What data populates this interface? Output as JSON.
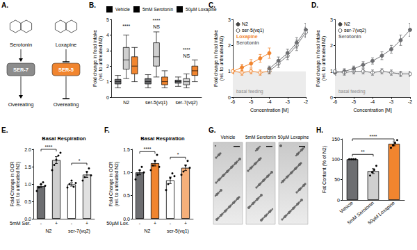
{
  "diagram": {
    "panel": "A.",
    "nodes": [
      {
        "label": "Serotonin",
        "kind": "molecule"
      },
      {
        "label": "Loxapine",
        "kind": "molecule"
      },
      {
        "label": "SER-7",
        "kind": "receptor",
        "color": "#8c8c8c"
      },
      {
        "label": "SER-5",
        "kind": "receptor",
        "color": "#f1852f"
      },
      {
        "label": "Overeating",
        "kind": "phenotype"
      },
      {
        "label": "Overeating",
        "kind": "phenotype"
      }
    ],
    "edges": [
      {
        "from": 0,
        "to": 2,
        "type": "activates"
      },
      {
        "from": 2,
        "to": 4,
        "type": "activates"
      },
      {
        "from": 1,
        "to": 3,
        "type": "inhibits"
      },
      {
        "from": 3,
        "to": 5,
        "type": "inhibits"
      }
    ]
  },
  "images": {
    "panel": "G.",
    "labels": [
      "Vehicle",
      "5mM Serotonin",
      "50µM Loxapine"
    ]
  },
  "chart_data": [
    {
      "panel": "B.",
      "type": "boxplot",
      "y_label": [
        "Fold change in food intake",
        "(rel. to untreated N2)"
      ],
      "categories": [
        "N2",
        "ser-5(vq1)",
        "ser-7(vq2)"
      ],
      "series": [
        {
          "name": "Vehicle",
          "color": "#6d6e71",
          "values": [
            [
              0.6,
              0.85,
              1.0,
              1.15,
              1.4
            ],
            [
              0.6,
              0.85,
              1.0,
              1.2,
              1.45
            ],
            [
              0.7,
              0.9,
              1.0,
              1.1,
              1.3
            ]
          ]
        },
        {
          "name": "5mM Serotonin",
          "color": "#cfcfcf",
          "values": [
            [
              1.2,
              1.8,
              2.4,
              3.2,
              4.0
            ],
            [
              1.3,
              2.0,
              2.6,
              3.5,
              4.2
            ],
            [
              0.6,
              0.8,
              1.0,
              1.2,
              1.5
            ]
          ]
        },
        {
          "name": "50µM Loxapine",
          "color": "#f1852f",
          "values": [
            [
              1.0,
              1.5,
              2.0,
              2.6,
              3.2
            ],
            [
              0.6,
              0.8,
              1.0,
              1.3,
              1.7
            ],
            [
              1.0,
              1.4,
              1.7,
              2.0,
              2.4
            ]
          ]
        }
      ],
      "ylim": [
        0,
        5
      ],
      "yticks": [
        0,
        1,
        2,
        3,
        4,
        5
      ],
      "grid": false,
      "legend": "top",
      "annotations": [
        {
          "text": "****",
          "x": 0,
          "y": 4.4
        },
        {
          "text": "****",
          "x": 1,
          "y": 4.75
        },
        {
          "text": "NS",
          "x": 1,
          "y": 4.35
        },
        {
          "text": "****",
          "x": 2,
          "y": 2.9
        },
        {
          "text": "NS",
          "x": 2,
          "y": 2.5
        }
      ]
    },
    {
      "panel": "C.",
      "type": "line",
      "x_label": "Concentration [M]",
      "y_label": [
        "Fold change in food intake",
        "(rel. to untreated N2)"
      ],
      "xlim": [
        -6,
        -2
      ],
      "xticks": [
        -6,
        -5,
        -4,
        -3,
        -2
      ],
      "ylim": [
        0,
        3
      ],
      "yticks": [
        0,
        1,
        2,
        3
      ],
      "grid": false,
      "band": {
        "label": "basal feeding",
        "range": [
          0,
          1
        ]
      },
      "key": {
        "strains": [
          {
            "label": "N2",
            "marker": "filled"
          },
          {
            "label": "ser-5(vq1)",
            "marker": "open"
          }
        ],
        "compounds": [
          {
            "label": "Loxapine",
            "color": "#f1852f"
          },
          {
            "label": "Serotonin",
            "color": "#6d6e71"
          }
        ]
      },
      "series": [
        {
          "color": "#f1852f",
          "marker": "filled",
          "x": [
            -6,
            -5.5,
            -5,
            -4.5,
            -4
          ],
          "values": [
            1.0,
            1.15,
            1.3,
            1.5,
            1.7
          ],
          "errors": [
            0.1,
            0.12,
            0.15,
            0.15,
            0.2
          ]
        },
        {
          "color": "#f1852f",
          "marker": "open",
          "x": [
            -6,
            -5.5,
            -5,
            -4.5,
            -4
          ],
          "values": [
            1.0,
            0.95,
            1.0,
            0.95,
            1.0
          ],
          "errors": [
            0.1,
            0.1,
            0.1,
            0.1,
            0.1
          ]
        },
        {
          "color": "#6d6e71",
          "marker": "filled",
          "x": [
            -4,
            -3.5,
            -3,
            -2.5,
            -2
          ],
          "values": [
            1.1,
            1.4,
            1.7,
            2.1,
            2.6
          ],
          "errors": [
            0.1,
            0.15,
            0.15,
            0.2,
            0.25
          ]
        },
        {
          "color": "#6d6e71",
          "marker": "open",
          "x": [
            -4,
            -3.5,
            -3,
            -2.5,
            -2
          ],
          "values": [
            1.0,
            1.3,
            1.6,
            2.0,
            2.5
          ],
          "errors": [
            0.1,
            0.15,
            0.15,
            0.2,
            0.2
          ]
        }
      ]
    },
    {
      "panel": "D.",
      "type": "line",
      "x_label": "Concentration [M]",
      "y_label": [
        "Fold change in food intake",
        "(rel. to untreated N2)"
      ],
      "xlim": [
        -6,
        -2
      ],
      "xticks": [
        -6,
        -5,
        -4,
        -3,
        -2
      ],
      "ylim": [
        0,
        3
      ],
      "yticks": [
        0,
        1,
        2,
        3
      ],
      "grid": false,
      "band": {
        "label": "basal feeding",
        "range": [
          0,
          1
        ]
      },
      "key": {
        "strains": [
          {
            "label": "N2",
            "marker": "filled"
          },
          {
            "label": "ser-7(vq2)",
            "marker": "open"
          }
        ],
        "compounds": [
          {
            "label": "Serotonin",
            "color": "#6d6e71"
          }
        ]
      },
      "series": [
        {
          "color": "#6d6e71",
          "marker": "filled",
          "x": [
            -6,
            -5.5,
            -5,
            -4.5,
            -4,
            -3.5,
            -3,
            -2.5,
            -2
          ],
          "values": [
            0.95,
            1.0,
            1.1,
            1.25,
            1.4,
            1.6,
            1.85,
            2.2,
            2.6
          ],
          "errors": [
            0.1,
            0.1,
            0.1,
            0.12,
            0.12,
            0.15,
            0.15,
            0.2,
            0.25
          ]
        },
        {
          "color": "#6d6e71",
          "marker": "open",
          "x": [
            -6,
            -5.5,
            -5,
            -4.5,
            -4,
            -3.5,
            -3,
            -2.5,
            -2
          ],
          "values": [
            1.0,
            0.95,
            1.0,
            1.0,
            0.95,
            1.0,
            0.95,
            0.9,
            0.9
          ],
          "errors": [
            0.1,
            0.1,
            0.1,
            0.1,
            0.1,
            0.1,
            0.1,
            0.1,
            0.1
          ]
        }
      ]
    },
    {
      "panel": "E.",
      "type": "bar",
      "title": "Basal Respiration",
      "y_label": [
        "Fold Change in OCR",
        "(rel. to untreated N2)"
      ],
      "categories": [
        "-",
        "+",
        "-",
        "+"
      ],
      "groups": [
        "N2",
        "ser-7(vq2)"
      ],
      "treatment_label": "5mM Ser.",
      "values": [
        0.94,
        1.69,
        0.99,
        1.27
      ],
      "errors": [
        0.05,
        0.1,
        0.05,
        0.08
      ],
      "colors": [
        "#6d6e71",
        "#cfcfcf",
        "#ffffff",
        "#e0e0e0"
      ],
      "points": [
        [
          0.8,
          0.9,
          1.0,
          1.05,
          0.95
        ],
        [
          1.4,
          1.55,
          1.7,
          1.82,
          1.9
        ],
        [
          0.9,
          1.0,
          1.1,
          0.92,
          1.03
        ],
        [
          1.1,
          1.2,
          1.35,
          1.45,
          1.25
        ]
      ],
      "ylim": [
        0,
        2
      ],
      "yticks": [
        {
          "value": 0,
          "label": "0.0"
        },
        {
          "value": 0.5,
          "label": "0.5"
        },
        {
          "value": 1,
          "label": "1.0"
        },
        {
          "value": 1.5,
          "label": "1.5"
        },
        {
          "value": 2,
          "label": "2.0"
        }
      ],
      "grid": false,
      "annotations": [
        {
          "text": "****",
          "x": [
            0,
            1
          ],
          "y": 2.0
        },
        {
          "text": "*",
          "x": [
            2,
            3
          ],
          "y": 1.6
        }
      ]
    },
    {
      "panel": "F.",
      "type": "bar",
      "title": "Basal Respiration",
      "y_label": [
        "Fold Change in OCR",
        "(rel. to untreated N2)"
      ],
      "categories": [
        "-",
        "+",
        "-",
        "+"
      ],
      "groups": [
        "N2",
        "ser-5(vq1)"
      ],
      "treatment_label": "50µM Lox.",
      "values": [
        1.0,
        1.2,
        0.83,
        1.1
      ],
      "errors": [
        0.05,
        0.06,
        0.07,
        0.06
      ],
      "colors": [
        "#6d6e71",
        "#f1852f",
        "#ffffff",
        "#f6b07a"
      ],
      "points": [
        [
          0.85,
          0.95,
          1.05,
          1.12,
          1.0
        ],
        [
          1.05,
          1.15,
          1.25,
          1.38,
          1.12
        ],
        [
          0.62,
          0.75,
          0.88,
          0.98,
          0.92
        ],
        [
          0.95,
          1.02,
          1.15,
          1.25,
          1.1
        ]
      ],
      "ylim": [
        0,
        1.5
      ],
      "yticks": [
        {
          "value": 0,
          "label": "0.0"
        },
        {
          "value": 0.5,
          "label": "0.5"
        },
        {
          "value": 1,
          "label": "1.0"
        },
        {
          "value": 1.5,
          "label": "1.5"
        }
      ],
      "grid": false,
      "annotations": [
        {
          "text": "****",
          "x": [
            0,
            1
          ],
          "y": 1.45
        },
        {
          "text": "*",
          "x": [
            2,
            3
          ],
          "y": 1.33
        }
      ]
    },
    {
      "panel": "H.",
      "type": "bar",
      "y_label": [
        "Fat Content (% of N2)"
      ],
      "categories": [
        "Vehicle",
        "5mM Serotonin",
        "50µM Loxapine"
      ],
      "values": [
        100,
        71,
        138
      ],
      "errors": [
        0,
        6,
        5
      ],
      "colors": [
        "#6d6e71",
        "#cfcfcf",
        "#f1852f"
      ],
      "points": [
        [
          100,
          100,
          100,
          100
        ],
        [
          60,
          68,
          74,
          84
        ],
        [
          128,
          134,
          140,
          147
        ]
      ],
      "ylim": [
        0,
        150
      ],
      "yticks": [
        0,
        50,
        100,
        150
      ],
      "grid": false,
      "annotations": [
        {
          "text": "**",
          "x": [
            0,
            1
          ],
          "y": 112
        },
        {
          "text": "****",
          "x": [
            0,
            2
          ],
          "y": 150
        }
      ]
    }
  ]
}
